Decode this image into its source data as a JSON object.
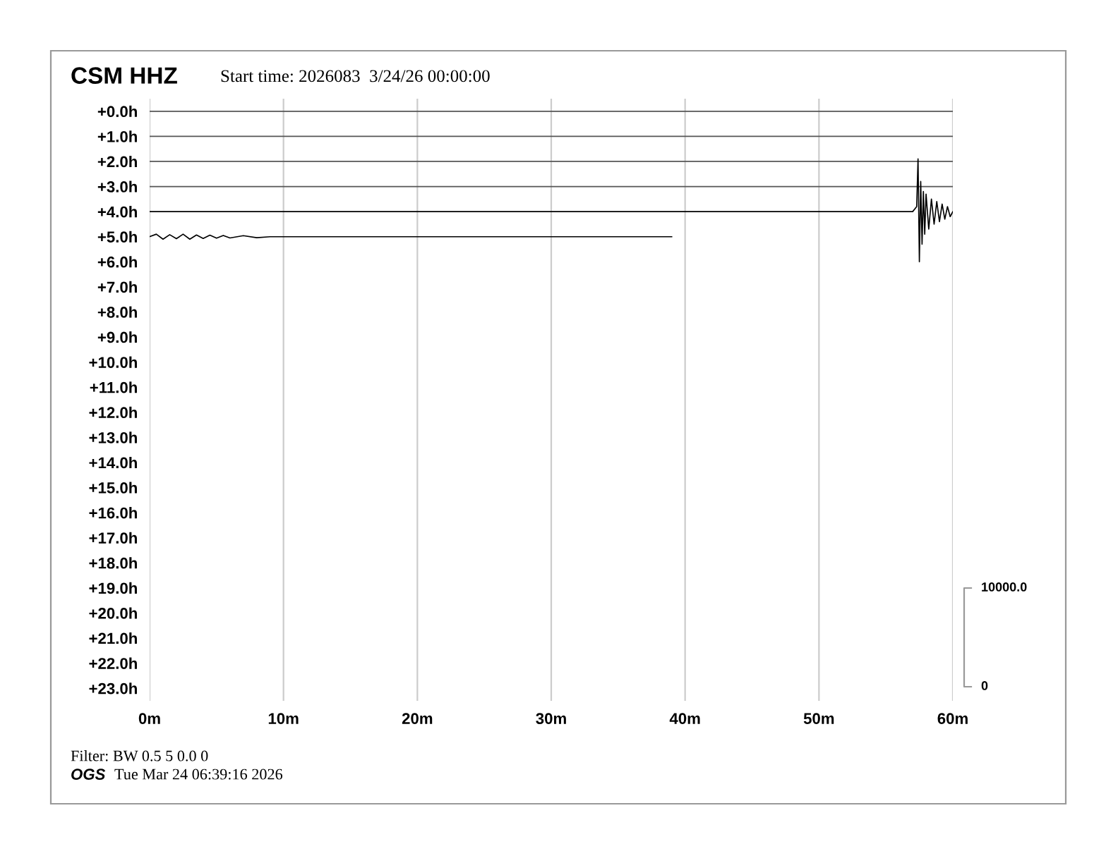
{
  "chart_data": {
    "type": "line",
    "title": "CSM HHZ",
    "subtitle": "Start time: 2026083  3/24/26 00:00:00",
    "xlim": [
      0,
      60
    ],
    "xticks": [
      {
        "value": 0,
        "label": "0m"
      },
      {
        "value": 10,
        "label": "10m"
      },
      {
        "value": 20,
        "label": "20m"
      },
      {
        "value": 30,
        "label": "30m"
      },
      {
        "value": 40,
        "label": "40m"
      },
      {
        "value": 50,
        "label": "50m"
      },
      {
        "value": 60,
        "label": "60m"
      }
    ],
    "ylim": [
      23.5,
      -0.5
    ],
    "yticks": [
      {
        "value": 0,
        "label": "+0.0h"
      },
      {
        "value": 1,
        "label": "+1.0h"
      },
      {
        "value": 2,
        "label": "+2.0h"
      },
      {
        "value": 3,
        "label": "+3.0h"
      },
      {
        "value": 4,
        "label": "+4.0h"
      },
      {
        "value": 5,
        "label": "+5.0h"
      },
      {
        "value": 6,
        "label": "+6.0h"
      },
      {
        "value": 7,
        "label": "+7.0h"
      },
      {
        "value": 8,
        "label": "+8.0h"
      },
      {
        "value": 9,
        "label": "+9.0h"
      },
      {
        "value": 10,
        "label": "+10.0h"
      },
      {
        "value": 11,
        "label": "+11.0h"
      },
      {
        "value": 12,
        "label": "+12.0h"
      },
      {
        "value": 13,
        "label": "+13.0h"
      },
      {
        "value": 14,
        "label": "+14.0h"
      },
      {
        "value": 15,
        "label": "+15.0h"
      },
      {
        "value": 16,
        "label": "+16.0h"
      },
      {
        "value": 17,
        "label": "+17.0h"
      },
      {
        "value": 18,
        "label": "+18.0h"
      },
      {
        "value": 19,
        "label": "+19.0h"
      },
      {
        "value": 20,
        "label": "+20.0h"
      },
      {
        "value": 21,
        "label": "+21.0h"
      },
      {
        "value": 22,
        "label": "+22.0h"
      },
      {
        "value": 23,
        "label": "+23.0h"
      }
    ],
    "grid": "x",
    "marker": "none",
    "line_style": "solid",
    "series": [
      {
        "color": "#555555",
        "x": [
          0,
          60
        ],
        "values": [
          0,
          0
        ]
      },
      {
        "color": "#555555",
        "x": [
          0,
          60
        ],
        "values": [
          1,
          1
        ]
      },
      {
        "color": "#555555",
        "x": [
          0,
          60
        ],
        "values": [
          2,
          2
        ]
      },
      {
        "color": "#555555",
        "x": [
          0,
          60
        ],
        "values": [
          3,
          3
        ]
      },
      {
        "color": "#000000",
        "x": [
          0,
          57.0,
          57.3,
          57.4,
          57.5,
          57.6,
          57.7,
          57.8,
          57.9,
          58.0,
          58.2,
          58.4,
          58.6,
          58.8,
          59.0,
          59.2,
          59.4,
          59.6,
          59.8,
          60
        ],
        "values": [
          4,
          4,
          3.8,
          1.9,
          6.0,
          2.8,
          5.3,
          3.2,
          4.9,
          3.3,
          4.7,
          3.5,
          4.5,
          3.6,
          4.4,
          3.7,
          4.3,
          3.8,
          4.2,
          4.0
        ]
      },
      {
        "color": "#000000",
        "x": [
          0,
          0.5,
          1,
          1.5,
          2,
          2.5,
          3,
          3.5,
          4,
          4.5,
          5,
          5.5,
          6,
          7,
          8,
          9,
          39
        ],
        "values": [
          5,
          4.9,
          5.1,
          4.92,
          5.08,
          4.9,
          5.1,
          4.93,
          5.07,
          4.94,
          5.06,
          4.95,
          5.05,
          4.96,
          5.04,
          5,
          5
        ]
      }
    ],
    "annotations": [
      "10000.0",
      "0",
      "Filter: BW 0.5 5 0.0 0",
      "OGS",
      "Tue Mar 24 06:39:16 2026"
    ]
  }
}
